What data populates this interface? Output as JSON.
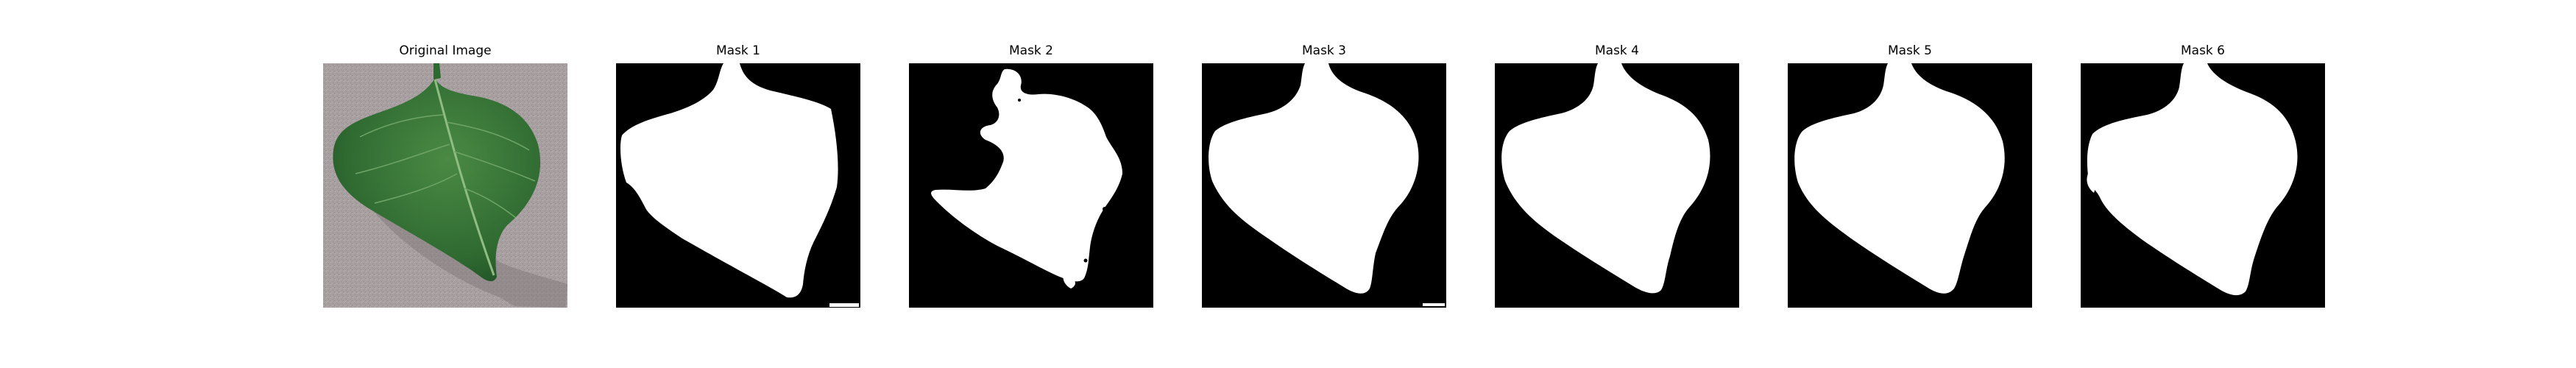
{
  "panels": [
    {
      "title": "Original Image",
      "kind": "photo"
    },
    {
      "title": "Mask 1",
      "kind": "mask"
    },
    {
      "title": "Mask 2",
      "kind": "mask"
    },
    {
      "title": "Mask 3",
      "kind": "mask"
    },
    {
      "title": "Mask 4",
      "kind": "mask"
    },
    {
      "title": "Mask 5",
      "kind": "mask"
    },
    {
      "title": "Mask 6",
      "kind": "mask"
    }
  ],
  "colors": {
    "background": "#ffffff",
    "mask_background": "#000000",
    "mask_foreground": "#ffffff",
    "photo_background": "#a69d9f",
    "leaf_green": "#3f7d3d",
    "leaf_dark": "#245a27",
    "leaf_vein": "#8fbc82"
  }
}
